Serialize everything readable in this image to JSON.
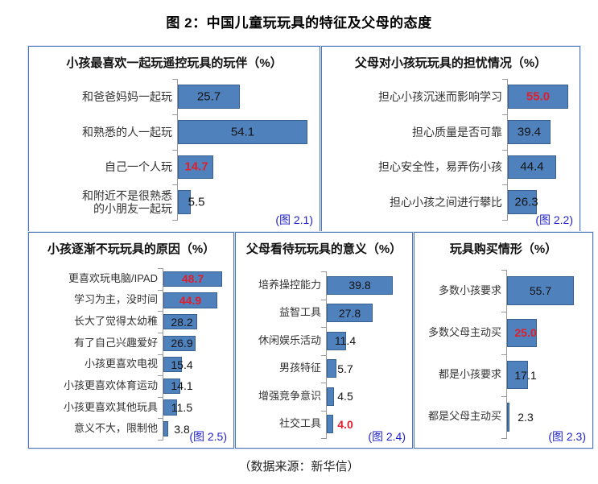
{
  "page": {
    "title": "图 2：中国儿童玩玩具的特征及父母的态度",
    "source": "（数据来源：新华信）"
  },
  "colors": {
    "bar_fill": "#4f81bd",
    "bar_border": "#38618f",
    "panel_border": "#4d76b6",
    "value_red": "#e01f2d",
    "caption_blue": "#2222cc",
    "axis_gray": "#9a9a9a"
  },
  "chart_data": [
    {
      "id": "figure-2-1",
      "type": "bar",
      "orientation": "horizontal",
      "unit": "%",
      "title": "小孩最喜欢一起玩遥控玩具的玩伴（%）",
      "caption": "(图 2.1)",
      "axis_max": 56,
      "grid": false,
      "categories": [
        "和爸爸妈妈一起玩",
        "和熟悉的人一起玩",
        "自己一个人玩",
        "和附近不是很熟悉\n的小朋友一起玩"
      ],
      "values": [
        25.7,
        54.1,
        14.7,
        5.5
      ],
      "values_display": [
        "25.7",
        "54.1",
        "14.7",
        "5.5"
      ],
      "red_indexes": [
        2
      ]
    },
    {
      "id": "figure-2-2",
      "type": "bar",
      "orientation": "horizontal",
      "unit": "%",
      "title": "父母对小孩玩玩具的担忧情况（%）",
      "caption": "(图 2.2)",
      "axis_max": 59,
      "grid": false,
      "categories": [
        "担心小孩沉迷而影响学习",
        "担心质量是否可靠",
        "担心安全性，易弄伤小孩",
        "担心小孩之间进行攀比"
      ],
      "values": [
        55.0,
        39.4,
        44.4,
        26.3
      ],
      "values_display": [
        "55.0",
        "39.4",
        "44.4",
        "26.3"
      ],
      "red_indexes": [
        0
      ]
    },
    {
      "id": "figure-2-5",
      "type": "bar",
      "orientation": "horizontal",
      "unit": "%",
      "title": "小孩逐渐不玩玩具的原因（%）",
      "caption": "(图 2.5)",
      "axis_max": 52,
      "grid": false,
      "categories": [
        "更喜欢玩电脑/IPAD",
        "学习为主，没时间",
        "长大了觉得太幼稚",
        "有了自己兴趣爱好",
        "小孩更喜欢电视",
        "小孩更喜欢体育运动",
        "小孩更喜欢其他玩具",
        "意义不大，限制他"
      ],
      "values": [
        48.7,
        44.9,
        28.2,
        26.9,
        15.4,
        14.1,
        11.5,
        3.8
      ],
      "values_display": [
        "48.7",
        "44.9",
        "28.2",
        "26.9",
        "15.4",
        "14.1",
        "11.5",
        "3.8"
      ],
      "red_indexes": [
        0,
        1
      ]
    },
    {
      "id": "figure-2-4",
      "type": "bar",
      "orientation": "horizontal",
      "unit": "%",
      "title": "父母看待玩玩具的意义（%）",
      "caption": "(图 2.4)",
      "axis_max": 47,
      "grid": false,
      "categories": [
        "培养操控能力",
        "益智工具",
        "休闲娱乐活动",
        "男孩特征",
        "增强竞争意识",
        "社交工具"
      ],
      "values": [
        39.8,
        27.8,
        11.4,
        5.7,
        4.5,
        4.0
      ],
      "values_display": [
        "39.8",
        "27.8",
        "11.4",
        "5.7",
        "4.5",
        "4.0"
      ],
      "red_indexes": [
        5
      ]
    },
    {
      "id": "figure-2-3",
      "type": "bar",
      "orientation": "horizontal",
      "unit": "%",
      "title": "玩具购买情形（%）",
      "caption": "(图 2.3)",
      "axis_max": 65,
      "grid": false,
      "categories": [
        "多数小孩要求",
        "多数父母主动买",
        "都是小孩要求",
        "都是父母主动买"
      ],
      "values": [
        55.7,
        25.0,
        17.1,
        2.3
      ],
      "values_display": [
        "55.7",
        "25.0",
        "17.1",
        "2.3"
      ],
      "red_indexes": [
        1
      ]
    }
  ]
}
